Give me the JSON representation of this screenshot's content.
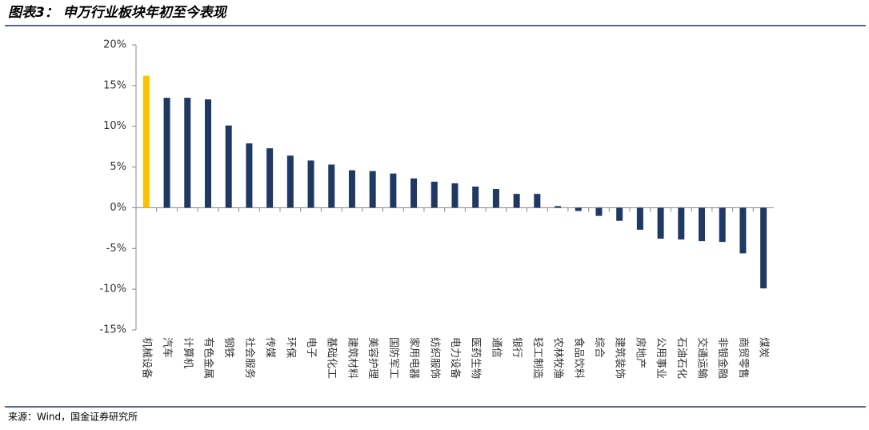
{
  "header": {
    "title": "图表3： 申万行业板块年初至今表现"
  },
  "chart_data": {
    "type": "bar",
    "categories": [
      "机械设备",
      "汽车",
      "计算机",
      "有色金属",
      "钢铁",
      "社会服务",
      "传媒",
      "环保",
      "电子",
      "基础化工",
      "建筑材料",
      "美容护理",
      "国防军工",
      "家用电器",
      "纺织服饰",
      "电力设备",
      "医药生物",
      "通信",
      "银行",
      "轻工制造",
      "农林牧渔",
      "食品饮料",
      "综合",
      "建筑装饰",
      "房地产",
      "公用事业",
      "石油石化",
      "交通运输",
      "非银金融",
      "商贸零售",
      "煤炭"
    ],
    "values": [
      16.2,
      13.5,
      13.5,
      13.3,
      10.1,
      7.9,
      7.3,
      6.4,
      5.8,
      5.3,
      4.6,
      4.5,
      4.2,
      3.6,
      3.2,
      3.0,
      2.6,
      2.3,
      1.7,
      1.7,
      0.2,
      -0.4,
      -1.0,
      -1.6,
      -2.7,
      -3.8,
      -3.9,
      -4.1,
      -4.2,
      -5.6,
      -9.9
    ],
    "colors": [
      "#ffc000",
      "#1f3864",
      "#1f3864",
      "#1f3864",
      "#1f3864",
      "#1f3864",
      "#1f3864",
      "#1f3864",
      "#1f3864",
      "#1f3864",
      "#1f3864",
      "#1f3864",
      "#1f3864",
      "#1f3864",
      "#1f3864",
      "#1f3864",
      "#1f3864",
      "#1f3864",
      "#1f3864",
      "#1f3864",
      "#1f3864",
      "#1f3864",
      "#1f3864",
      "#1f3864",
      "#1f3864",
      "#1f3864",
      "#1f3864",
      "#1f3864",
      "#1f3864",
      "#1f3864",
      "#1f3864"
    ],
    "ylim": [
      -15,
      20
    ],
    "yticks": [
      {
        "value": -15,
        "label": "-15%"
      },
      {
        "value": -10,
        "label": "-10%"
      },
      {
        "value": -5,
        "label": "-5%"
      },
      {
        "value": 0,
        "label": "0%"
      },
      {
        "value": 5,
        "label": "5%"
      },
      {
        "value": 10,
        "label": "10%"
      },
      {
        "value": 15,
        "label": "15%"
      },
      {
        "value": 20,
        "label": "20%"
      }
    ],
    "grid": false
  },
  "footer": {
    "source": "来源：Wind，国金证券研究所"
  }
}
